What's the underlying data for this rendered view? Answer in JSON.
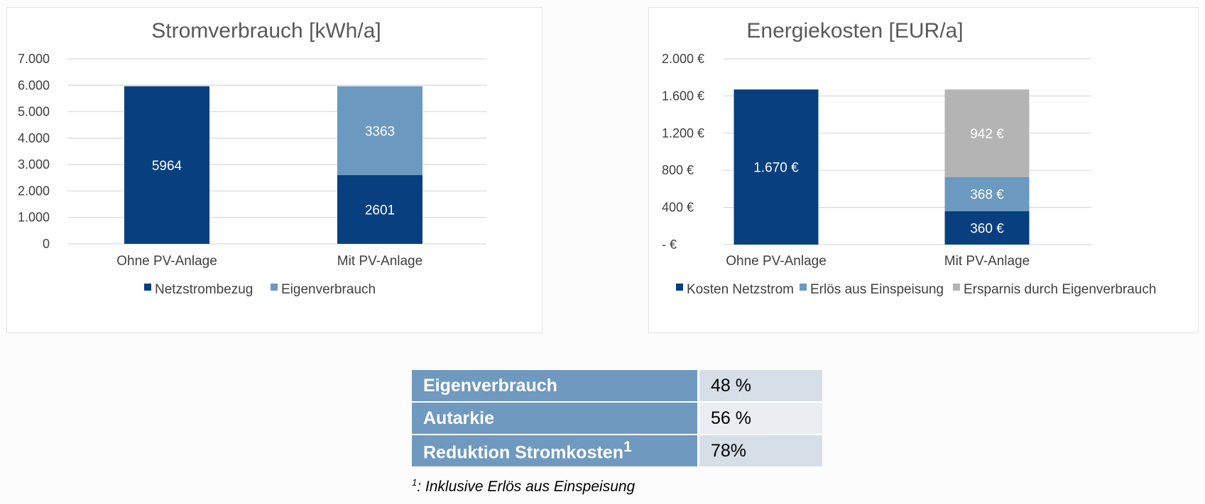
{
  "chart_data": [
    {
      "type": "bar",
      "stacked": true,
      "title": "Stromverbrauch [kWh/a]",
      "categories": [
        "Ohne PV-Anlage",
        "Mit PV-Anlage"
      ],
      "series": [
        {
          "name": "Netzstrombezug",
          "color": "#073f7f",
          "values": [
            5964,
            2601
          ],
          "labels": [
            "5964",
            "2601"
          ]
        },
        {
          "name": "Eigenverbrauch",
          "color": "#6b99bf",
          "values": [
            0,
            3363
          ],
          "labels": [
            "",
            "3363"
          ]
        }
      ],
      "ylim": [
        0,
        7000
      ],
      "yticks": [
        0,
        1000,
        2000,
        3000,
        4000,
        5000,
        6000,
        7000
      ],
      "ytick_labels": [
        "0",
        "1.000",
        "2.000",
        "3.000",
        "4.000",
        "5.000",
        "6.000",
        "7.000"
      ],
      "legend": "bottom",
      "grid": true
    },
    {
      "type": "bar",
      "stacked": true,
      "title": "Energiekosten [EUR/a]",
      "categories": [
        "Ohne PV-Anlage",
        "Mit PV-Anlage"
      ],
      "series": [
        {
          "name": "Kosten Netzstrom",
          "color": "#073f7f",
          "values": [
            1670,
            360
          ],
          "labels": [
            "1.670 €",
            "360 €"
          ]
        },
        {
          "name": "Erlös aus Einspeisung",
          "color": "#6b99bf",
          "values": [
            0,
            368
          ],
          "labels": [
            "",
            "368 €"
          ]
        },
        {
          "name": "Ersparnis durch Eigenverbrauch",
          "color": "#b4b4b4",
          "values": [
            0,
            942
          ],
          "labels": [
            "",
            "942 €"
          ]
        }
      ],
      "ylim": [
        0,
        2000
      ],
      "yticks": [
        0,
        400,
        800,
        1200,
        1600,
        2000
      ],
      "ytick_labels": [
        "-  €",
        "400 €",
        "800 €",
        "1.200 €",
        "1.600 €",
        "2.000 €"
      ],
      "legend": "bottom",
      "grid": true
    }
  ],
  "stats": {
    "rows": [
      {
        "label": "Eigenverbrauch",
        "sup": "",
        "value": "48 %"
      },
      {
        "label": "Autarkie",
        "sup": "",
        "value": "56 %"
      },
      {
        "label": "Reduktion Stromkosten",
        "sup": "1",
        "value": "78%"
      }
    ],
    "footnote_sup": "1",
    "footnote": ": Inklusive Erlös aus Einspeisung"
  }
}
